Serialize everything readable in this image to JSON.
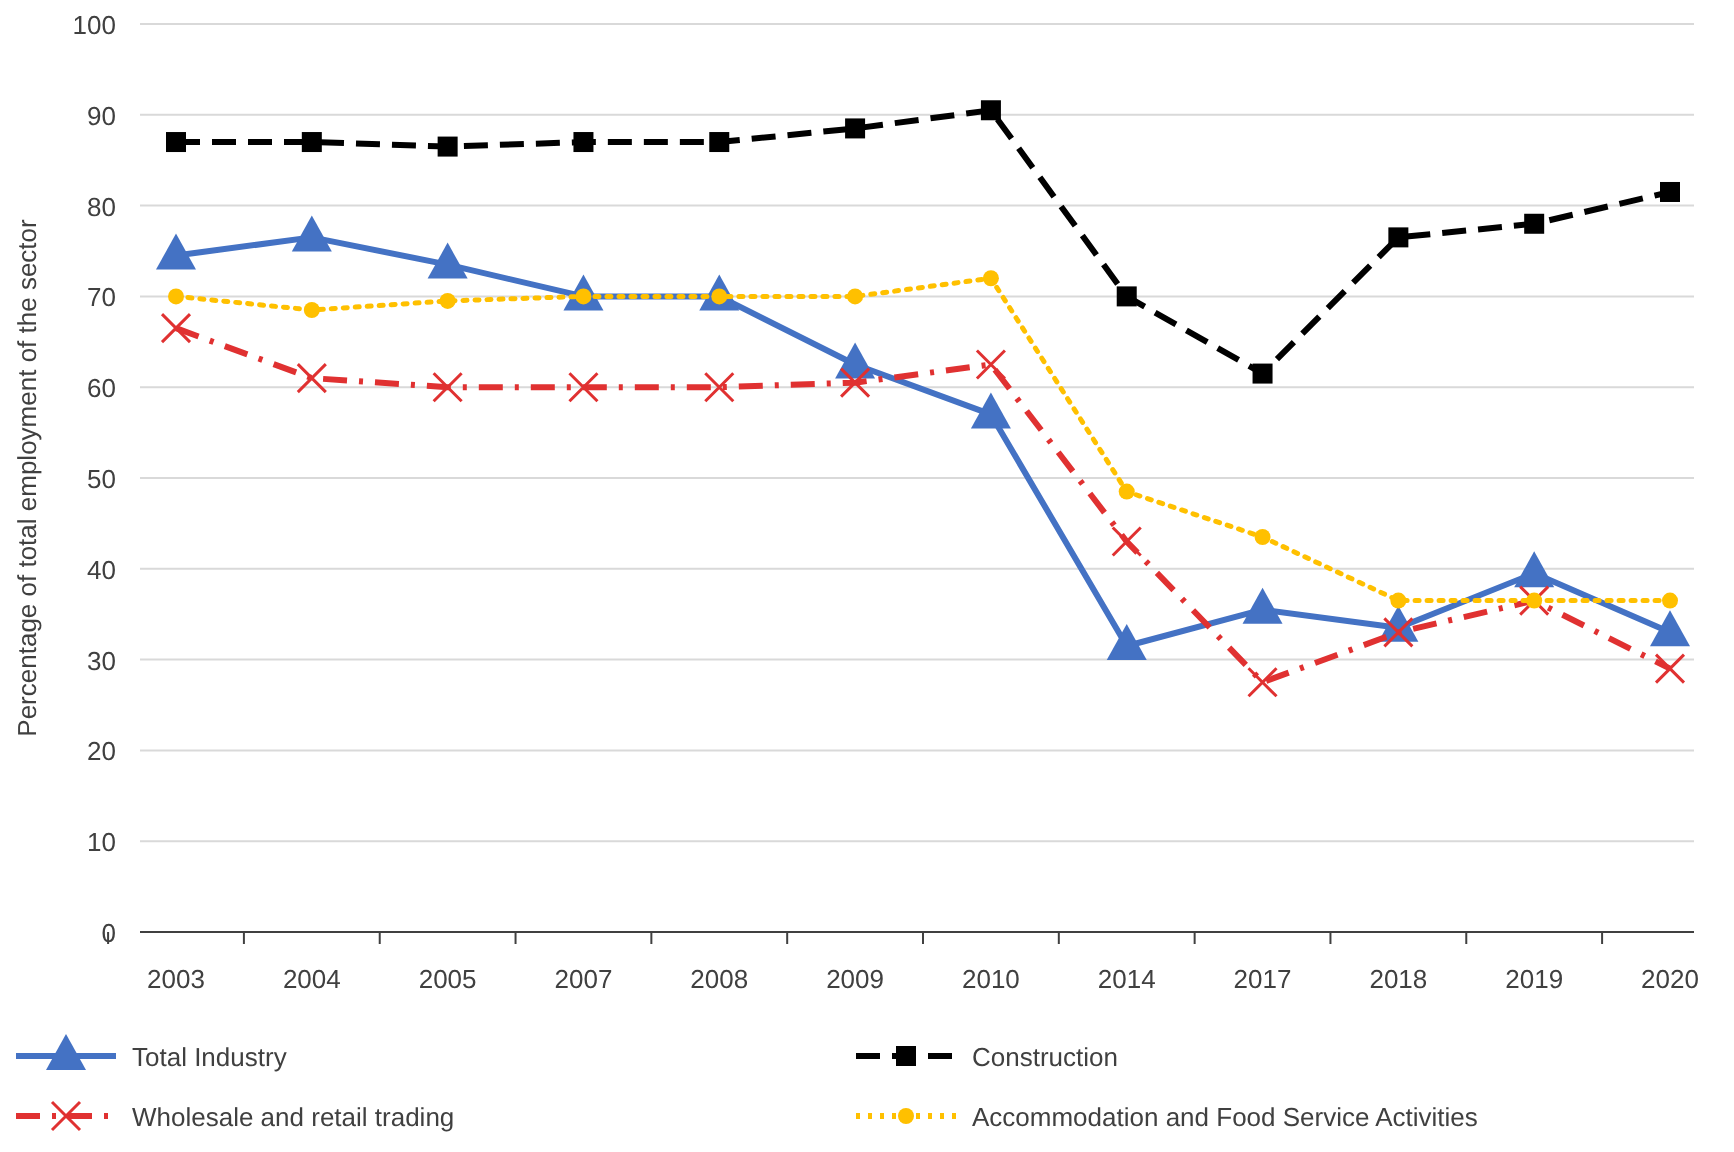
{
  "chart_data": {
    "type": "line",
    "ylabel": "Percentage of total employment of the sector",
    "categories": [
      "2003",
      "2004",
      "2005",
      "2007",
      "2008",
      "2009",
      "2010",
      "2014",
      "2017",
      "2018",
      "2019",
      "2020"
    ],
    "series": [
      {
        "name": "Total Industry",
        "color": "#4472c4",
        "marker": "triangle",
        "line_style": "solid",
        "values": [
          74.5,
          76.5,
          73.5,
          70,
          70,
          62.5,
          57,
          31.5,
          35.5,
          33.5,
          39.5,
          33
        ]
      },
      {
        "name": "Construction",
        "color": "#000000",
        "marker": "square",
        "line_style": "dashed",
        "values": [
          87,
          87,
          86.5,
          87,
          87,
          88.5,
          90.5,
          70,
          61.5,
          76.5,
          78,
          81.5
        ]
      },
      {
        "name": "Wholesale and retail trading",
        "color": "#e03131",
        "marker": "cross",
        "line_style": "dashdot",
        "values": [
          66.5,
          61,
          60,
          60,
          60,
          60.5,
          62.5,
          43,
          27.5,
          33,
          36.5,
          29
        ]
      },
      {
        "name": "Accommodation and Food Service Activities",
        "color": "#ffc000",
        "marker": "circle",
        "line_style": "dotted",
        "values": [
          70,
          68.5,
          69.5,
          70,
          70,
          70,
          72,
          48.5,
          43.5,
          36.5,
          36.5,
          36.5
        ]
      }
    ],
    "ylim": [
      0,
      100
    ],
    "yticks": [
      0,
      10,
      20,
      30,
      40,
      50,
      60,
      70,
      80,
      90,
      100
    ],
    "grid": "y",
    "legend": "bottom"
  }
}
